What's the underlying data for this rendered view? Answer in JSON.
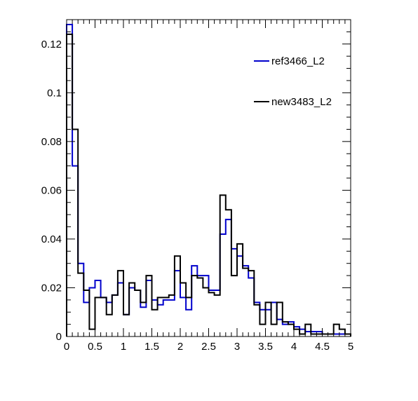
{
  "chart_data": {
    "type": "histogram",
    "title": "",
    "xlabel": "",
    "ylabel": "",
    "xlim": [
      0,
      5
    ],
    "ylim": [
      0,
      0.13
    ],
    "bin_width": 0.1,
    "legend_placement": "top-right",
    "x_ticks": [
      {
        "value": 0,
        "label": "0"
      },
      {
        "value": 0.5,
        "label": "0.5"
      },
      {
        "value": 1,
        "label": "1"
      },
      {
        "value": 1.5,
        "label": "1.5"
      },
      {
        "value": 2,
        "label": "2"
      },
      {
        "value": 2.5,
        "label": "2.5"
      },
      {
        "value": 3,
        "label": "3"
      },
      {
        "value": 3.5,
        "label": "3.5"
      },
      {
        "value": 4,
        "label": "4"
      },
      {
        "value": 4.5,
        "label": "4.5"
      },
      {
        "value": 5,
        "label": "5"
      }
    ],
    "y_ticks": [
      {
        "value": 0,
        "label": "0"
      },
      {
        "value": 0.02,
        "label": "0.02"
      },
      {
        "value": 0.04,
        "label": "0.04"
      },
      {
        "value": 0.06,
        "label": "0.06"
      },
      {
        "value": 0.08,
        "label": "0.08"
      },
      {
        "value": 0.1,
        "label": "0.1"
      },
      {
        "value": 0.12,
        "label": "0.12"
      }
    ],
    "series": [
      {
        "name": "ref3466_L2",
        "color": "#0000cc",
        "values": [
          0.128,
          0.07,
          0.03,
          0.014,
          0.02,
          0.023,
          0.016,
          0.014,
          0.017,
          0.022,
          0.009,
          0.02,
          0.019,
          0.012,
          0.023,
          0.015,
          0.013,
          0.015,
          0.015,
          0.027,
          0.016,
          0.011,
          0.029,
          0.025,
          0.025,
          0.019,
          0.019,
          0.042,
          0.048,
          0.036,
          0.033,
          0.029,
          0.024,
          0.014,
          0.011,
          0.011,
          0.014,
          0.007,
          0.005,
          0.006,
          0.004,
          0.003,
          0.002,
          0.002,
          0.002,
          0.001,
          0.001,
          0.001,
          0.001,
          0.001
        ]
      },
      {
        "name": "new3483_L2",
        "color": "#000000",
        "values": [
          0.124,
          0.085,
          0.026,
          0.019,
          0.003,
          0.016,
          0.016,
          0.009,
          0.017,
          0.027,
          0.009,
          0.022,
          0.019,
          0.014,
          0.025,
          0.011,
          0.016,
          0.016,
          0.017,
          0.033,
          0.022,
          0.016,
          0.025,
          0.024,
          0.02,
          0.018,
          0.017,
          0.058,
          0.052,
          0.025,
          0.038,
          0.028,
          0.027,
          0.013,
          0.005,
          0.014,
          0.005,
          0.014,
          0.006,
          0.005,
          0.003,
          0.001,
          0.005,
          0.001,
          0.001,
          0.001,
          0.001,
          0.005,
          0.003,
          0.001
        ]
      }
    ]
  }
}
